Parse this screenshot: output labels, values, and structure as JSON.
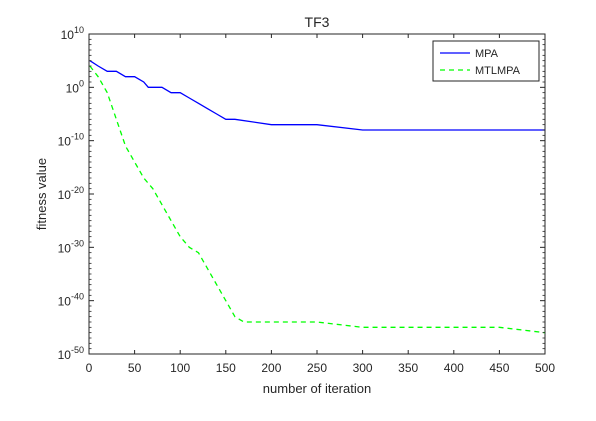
{
  "chart_data": {
    "type": "line",
    "title": "TF3",
    "xlabel": "number of iteration",
    "ylabel": "fitness value",
    "xlim": [
      0,
      500
    ],
    "ylim": [
      1e-50,
      10000000000.0
    ],
    "yscale": "log",
    "xticks": [
      0,
      50,
      100,
      150,
      200,
      250,
      300,
      350,
      400,
      450,
      500
    ],
    "xtick_labels": [
      "0",
      "50",
      "100",
      "150",
      "200",
      "250",
      "300",
      "350",
      "400",
      "450",
      "500"
    ],
    "yticks": [
      {
        "base": "10",
        "exp": "10",
        "value": 10000000000.0
      },
      {
        "base": "10",
        "exp": "0",
        "value": 1
      },
      {
        "base": "10",
        "exp": "-10",
        "value": 1e-10
      },
      {
        "base": "10",
        "exp": "-20",
        "value": 1e-20
      },
      {
        "base": "10",
        "exp": "-30",
        "value": 1e-30
      },
      {
        "base": "10",
        "exp": "-40",
        "value": 1e-40
      },
      {
        "base": "10",
        "exp": "-50",
        "value": 1e-50
      }
    ],
    "grid": false,
    "legend_position": "top-right",
    "series": [
      {
        "name": "MPA",
        "color": "#0000ff",
        "style": "solid",
        "x": [
          1,
          10,
          20,
          30,
          40,
          50,
          60,
          65,
          70,
          80,
          90,
          95,
          100,
          110,
          120,
          130,
          140,
          150,
          155,
          160,
          200,
          220,
          250,
          300,
          350,
          400,
          450,
          500
        ],
        "y": [
          100000.0,
          10000.0,
          1000.0,
          1000.0,
          100.0,
          100.0,
          10.0,
          1.0,
          1.0,
          1.0,
          0.1,
          0.1,
          0.1,
          0.01,
          0.001,
          0.0001,
          1e-05,
          1e-06,
          1e-06,
          1e-06,
          1e-07,
          1e-07,
          1e-07,
          1e-08,
          1e-08,
          1e-08,
          1e-08,
          1e-08
        ]
      },
      {
        "name": "MTLMPA",
        "color": "#00ff00",
        "style": "dashed",
        "x": [
          1,
          10,
          20,
          30,
          40,
          50,
          60,
          70,
          80,
          90,
          100,
          110,
          120,
          130,
          140,
          150,
          160,
          170,
          200,
          250,
          300,
          350,
          400,
          450,
          500
        ],
        "y": [
          10000.0,
          100.0,
          0.1,
          1e-06,
          1e-11,
          1e-14,
          1e-17,
          1e-19,
          1e-22,
          1e-25,
          1e-28,
          1e-30,
          1e-31,
          1e-34,
          1e-37,
          1e-40,
          1e-43,
          1e-44,
          1e-44,
          1e-44,
          1e-45,
          1e-45,
          1e-45,
          1e-45,
          1e-46
        ]
      }
    ]
  }
}
